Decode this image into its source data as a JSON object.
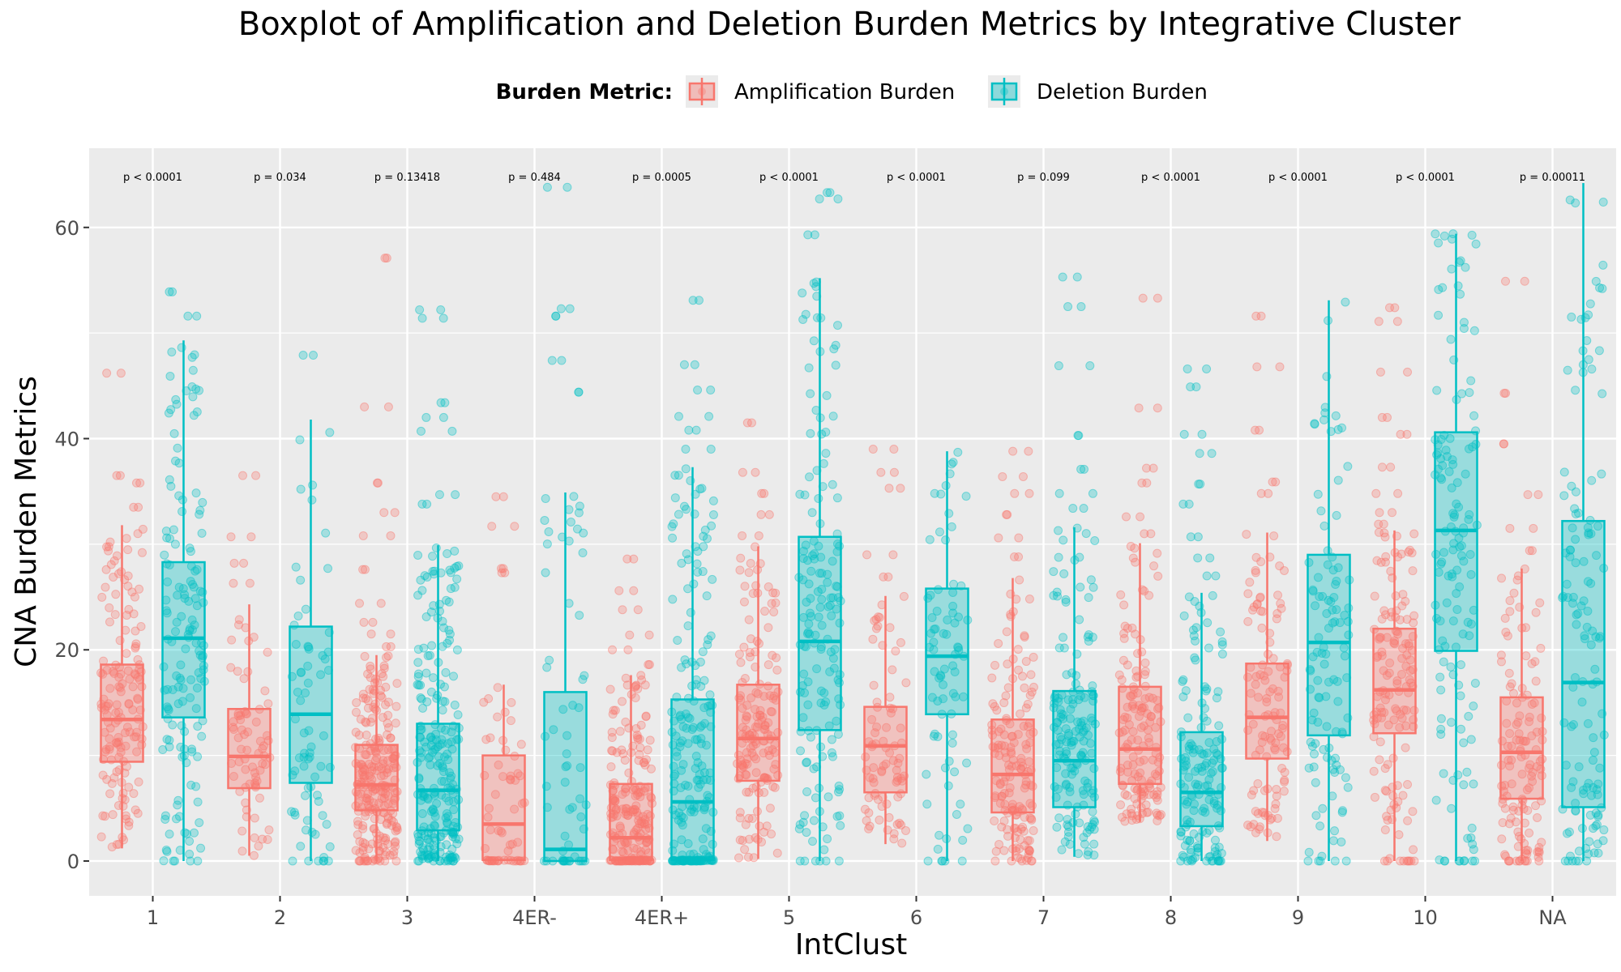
{
  "chart_data": {
    "type": "boxplot",
    "title": "Boxplot of Amplification and Deletion Burden Metrics by Integrative Cluster",
    "xlabel": "IntClust",
    "ylabel": "CNA Burden Metrics",
    "ylim": [
      -3.3,
      67.5
    ],
    "yticks": [
      0,
      20,
      40,
      60
    ],
    "grid": true,
    "legend": {
      "title": "Burden Metric:",
      "position": "top",
      "entries": [
        "Amplification Burden",
        "Deletion Burden"
      ]
    },
    "categories": [
      "1",
      "2",
      "3",
      "4ER-",
      "4ER+",
      "5",
      "6",
      "7",
      "8",
      "9",
      "10",
      "NA"
    ],
    "pvalues": [
      "p < 0.0001",
      "p = 0.034",
      "p = 0.13418",
      "p = 0.484",
      "p = 0.0005",
      "p < 0.0001",
      "p < 0.0001",
      "p = 0.099",
      "p < 0.0001",
      "p < 0.0001",
      "p < 0.0001",
      "p = 0.00011"
    ],
    "series": [
      {
        "name": "Amplification Burden",
        "color": "#F8766D",
        "boxes": [
          {
            "min": 1.2,
            "q1": 9.4,
            "median": 13.4,
            "q3": 18.6,
            "max": 31.8,
            "outliers": [
              33.5,
              35.8,
              36.5,
              46.2
            ]
          },
          {
            "min": 0.5,
            "q1": 6.9,
            "median": 9.9,
            "q3": 14.4,
            "max": 24.3,
            "outliers": [
              26.3,
              28.2,
              30.7,
              36.5
            ]
          },
          {
            "min": 0.0,
            "q1": 4.8,
            "median": 7.2,
            "q3": 11.0,
            "max": 19.5,
            "outliers": [
              20.3,
              21.5,
              22.6,
              24.4,
              27.6,
              30.8,
              33.0,
              35.8,
              43.0,
              57.1
            ]
          },
          {
            "min": 0.0,
            "q1": 0.1,
            "median": 3.5,
            "q3": 10.0,
            "max": 16.7,
            "outliers": [
              27.3,
              27.7,
              31.7,
              34.5
            ]
          },
          {
            "min": 0.0,
            "q1": 0.1,
            "median": 2.2,
            "q3": 7.3,
            "max": 17.6,
            "outliers": [
              18.6,
              20.0,
              21.4,
              23.8,
              25.6,
              28.6
            ]
          },
          {
            "min": 0.2,
            "q1": 7.6,
            "median": 11.6,
            "q3": 16.7,
            "max": 29.8,
            "outliers": [
              30.8,
              32.8,
              34.8,
              36.8,
              41.5
            ]
          },
          {
            "min": 1.6,
            "q1": 6.5,
            "median": 10.9,
            "q3": 14.6,
            "max": 25.1,
            "outliers": [
              26.9,
              29.0,
              35.3,
              36.8,
              39.0
            ]
          },
          {
            "min": 0.0,
            "q1": 4.6,
            "median": 8.2,
            "q3": 13.4,
            "max": 26.8,
            "outliers": [
              28.8,
              30.6,
              32.8,
              34.8,
              36.4,
              38.8
            ]
          },
          {
            "min": 3.7,
            "q1": 7.3,
            "median": 10.6,
            "q3": 16.5,
            "max": 30.1,
            "outliers": [
              31.0,
              32.6,
              35.8,
              37.2,
              42.9,
              53.3
            ]
          },
          {
            "min": 1.9,
            "q1": 9.7,
            "median": 13.6,
            "q3": 18.7,
            "max": 31.1,
            "outliers": [
              34.8,
              35.9,
              40.8,
              46.8,
              51.6
            ]
          },
          {
            "min": 0.0,
            "q1": 12.1,
            "median": 16.2,
            "q3": 22.0,
            "max": 31.3,
            "outliers": [
              31.9,
              33.0,
              34.8,
              37.3,
              40.4,
              42.0,
              46.3,
              51.1,
              52.4
            ]
          },
          {
            "min": 0.0,
            "q1": 5.9,
            "median": 10.3,
            "q3": 15.5,
            "max": 27.7,
            "outliers": [
              29.4,
              31.5,
              34.7,
              39.5,
              44.3,
              54.9
            ]
          }
        ]
      },
      {
        "name": "Deletion Burden",
        "color": "#00BFC4",
        "boxes": [
          {
            "min": 0.0,
            "q1": 13.6,
            "median": 21.1,
            "q3": 28.3,
            "max": 49.3,
            "outliers": [
              51.6,
              53.9
            ]
          },
          {
            "min": 0.0,
            "q1": 7.4,
            "median": 13.9,
            "q3": 22.2,
            "max": 41.8,
            "outliers": [
              47.9
            ]
          },
          {
            "min": 0.0,
            "q1": 2.9,
            "median": 6.7,
            "q3": 13.0,
            "max": 29.9,
            "outliers": [
              33.8,
              34.7,
              40.7,
              42.0,
              43.4,
              51.4,
              52.2
            ]
          },
          {
            "min": 0.0,
            "q1": 0.0,
            "median": 1.1,
            "q3": 16.0,
            "max": 34.9,
            "outliers": [
              44.4,
              47.4,
              51.6,
              52.3,
              63.8
            ]
          },
          {
            "min": 0.0,
            "q1": 0.1,
            "median": 5.6,
            "q3": 15.3,
            "max": 37.3,
            "outliers": [
              39.0,
              40.8,
              42.1,
              44.6,
              47.0,
              53.1
            ]
          },
          {
            "min": 0.0,
            "q1": 12.4,
            "median": 20.8,
            "q3": 30.7,
            "max": 55.2,
            "outliers": [
              59.3,
              62.7,
              63.3
            ]
          },
          {
            "min": 0.0,
            "q1": 13.9,
            "median": 19.4,
            "q3": 25.8,
            "max": 38.8
          },
          {
            "min": 0.4,
            "q1": 5.1,
            "median": 9.5,
            "q3": 16.1,
            "max": 31.6,
            "outliers": [
              33.4,
              34.8,
              37.1,
              40.3,
              46.9,
              52.5,
              55.3
            ]
          },
          {
            "min": 0.0,
            "q1": 3.3,
            "median": 6.5,
            "q3": 12.2,
            "max": 25.4,
            "outliers": [
              27.0,
              28.7,
              30.7,
              33.8,
              35.7,
              38.6,
              40.4,
              44.9,
              46.6
            ]
          },
          {
            "min": 0.0,
            "q1": 11.9,
            "median": 20.7,
            "q3": 29.0,
            "max": 53.1
          },
          {
            "min": 0.0,
            "q1": 19.9,
            "median": 31.3,
            "q3": 40.6,
            "max": 59.4
          },
          {
            "min": 0.0,
            "q1": 5.1,
            "median": 16.9,
            "q3": 32.2,
            "max": 64.2
          }
        ]
      }
    ]
  }
}
